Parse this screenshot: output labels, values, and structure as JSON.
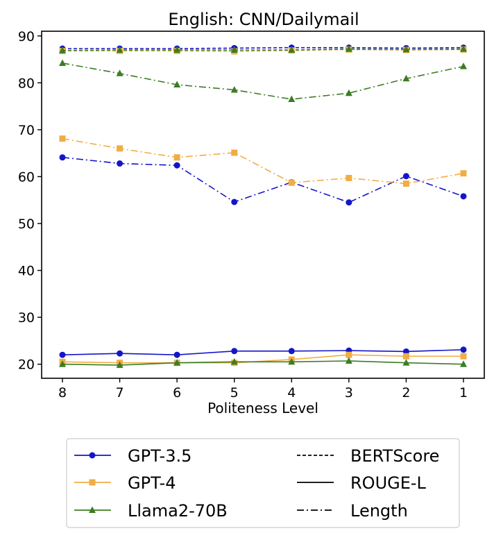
{
  "chart_data": {
    "type": "line",
    "title": "English: CNN/Dailymail",
    "xlabel": "Politeness Level",
    "ylabel": "",
    "categories": [
      "8",
      "7",
      "6",
      "5",
      "4",
      "3",
      "2",
      "1"
    ],
    "ylim": [
      17,
      91
    ],
    "yticks": [
      20,
      30,
      40,
      50,
      60,
      70,
      80,
      90
    ],
    "grid": false,
    "legend_placement": "below",
    "models": [
      {
        "name": "GPT-3.5",
        "color": "#1515c8",
        "marker": "circle"
      },
      {
        "name": "GPT-4",
        "color": "#f0ad45",
        "marker": "square"
      },
      {
        "name": "Llama2-70B",
        "color": "#3b7d23",
        "marker": "triangle"
      }
    ],
    "metrics": [
      {
        "name": "BERTScore",
        "style": "dashed"
      },
      {
        "name": "ROUGE-L",
        "style": "solid"
      },
      {
        "name": "Length",
        "style": "dashdot"
      }
    ],
    "series": [
      {
        "model": "GPT-3.5",
        "metric": "BERTScore",
        "values": [
          87.3,
          87.3,
          87.3,
          87.4,
          87.5,
          87.5,
          87.4,
          87.5
        ]
      },
      {
        "model": "GPT-4",
        "metric": "BERTScore",
        "values": [
          86.8,
          86.8,
          86.8,
          86.7,
          86.9,
          87.1,
          87.0,
          87.1
        ]
      },
      {
        "model": "Llama2-70B",
        "metric": "BERTScore",
        "values": [
          86.9,
          87.0,
          87.0,
          87.0,
          87.0,
          87.2,
          87.1,
          87.2
        ]
      },
      {
        "model": "GPT-3.5",
        "metric": "ROUGE-L",
        "values": [
          22.0,
          22.3,
          22.0,
          22.8,
          22.8,
          22.9,
          22.7,
          23.1
        ]
      },
      {
        "model": "GPT-4",
        "metric": "ROUGE-L",
        "values": [
          20.5,
          20.3,
          20.3,
          20.3,
          21.0,
          22.0,
          21.7,
          21.7
        ]
      },
      {
        "model": "Llama2-70B",
        "metric": "ROUGE-L",
        "values": [
          20.0,
          19.8,
          20.3,
          20.5,
          20.5,
          20.7,
          20.3,
          20.0
        ]
      },
      {
        "model": "GPT-3.5",
        "metric": "Length",
        "values": [
          64.1,
          62.8,
          62.4,
          54.6,
          58.8,
          54.5,
          60.1,
          55.8
        ]
      },
      {
        "model": "GPT-4",
        "metric": "Length",
        "values": [
          68.1,
          66.0,
          64.1,
          65.1,
          58.7,
          59.7,
          58.5,
          60.7
        ]
      },
      {
        "model": "Llama2-70B",
        "metric": "Length",
        "values": [
          84.2,
          82.0,
          79.6,
          78.5,
          76.5,
          77.8,
          80.9,
          83.5
        ]
      }
    ]
  }
}
